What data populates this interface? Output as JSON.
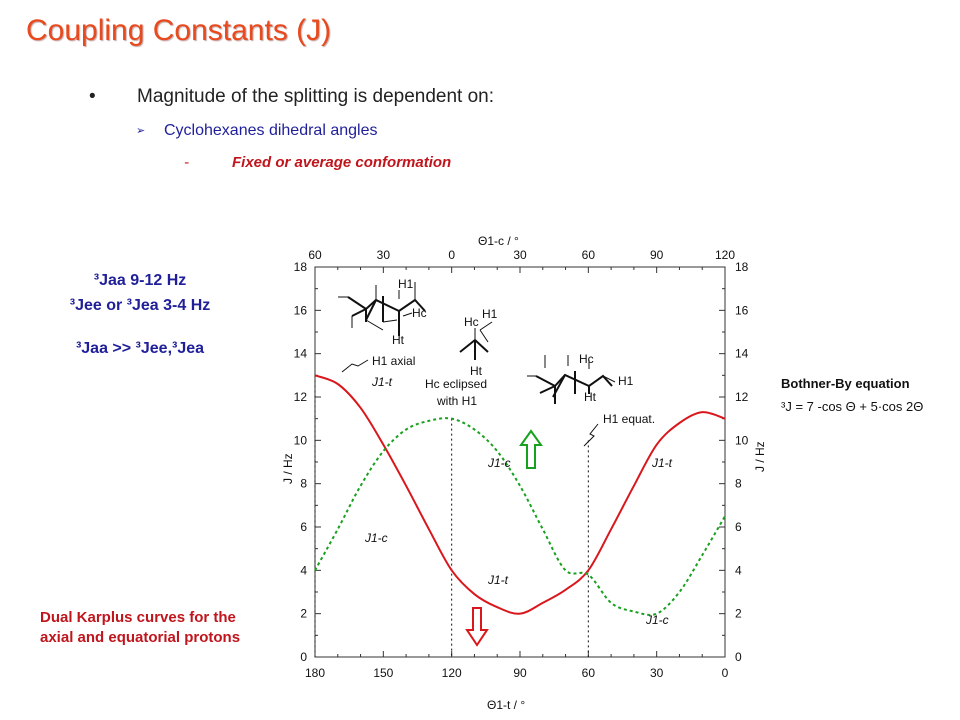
{
  "slide": {
    "title": "Coupling Constants (J)",
    "bullet_1": "Magnitude of the splitting is dependent on:",
    "bullet_1_marker": "•",
    "bullet_2": "Cyclohexanes dihedral angles",
    "bullet_2_marker": "➢",
    "bullet_3": "Fixed or average conformation",
    "bullet_3_marker": "-",
    "j_rule_1": "³Jaa 9-12 Hz",
    "j_rule_2": "³Jee or ³Jea 3-4 Hz",
    "j_rule_3": "³Jaa >> ³Jee,³Jea",
    "footnote": "Dual Karplus curves for the axial and equatorial protons"
  },
  "chart_data": {
    "type": "line",
    "x_bottom_label": "Θ1-t / °",
    "x_top_label": "Θ1-c / °",
    "ylabel_left": "J / Hz",
    "ylabel_right": "J / Hz",
    "x_bottom_ticks": [
      "180",
      "150",
      "120",
      "90",
      "60",
      "30",
      "0"
    ],
    "x_top_ticks": [
      "60",
      "30",
      "0",
      "30",
      "60",
      "90",
      "120"
    ],
    "y_ticks": [
      "0",
      "2",
      "4",
      "6",
      "8",
      "10",
      "12",
      "14",
      "16",
      "18"
    ],
    "xlim": [
      180,
      0
    ],
    "ylim": [
      0,
      18
    ],
    "equation_title": "Bothner-By equation",
    "equation": "³J = 7 -cos Θ + 5·cos 2Θ",
    "series": [
      {
        "name": "J1-t",
        "color": "#d9171c",
        "style": "solid",
        "x": [
          180,
          170,
          160,
          150,
          140,
          130,
          120,
          110,
          100,
          90,
          80,
          70,
          60,
          50,
          40,
          30,
          20,
          10,
          0
        ],
        "y": [
          13.0,
          12.6,
          11.5,
          9.8,
          7.9,
          5.9,
          4.0,
          2.9,
          2.3,
          2.0,
          2.5,
          3.1,
          4.0,
          5.9,
          7.9,
          9.8,
          10.8,
          11.3,
          11.0
        ]
      },
      {
        "name": "J1-c",
        "color": "#18a11e",
        "style": "dotted",
        "x": [
          180,
          170,
          160,
          150,
          140,
          130,
          120,
          110,
          100,
          90,
          80,
          70,
          60,
          50,
          40,
          30,
          20,
          10,
          0
        ],
        "y": [
          4.0,
          5.9,
          7.9,
          9.5,
          10.5,
          10.9,
          11.0,
          10.5,
          9.5,
          7.9,
          5.9,
          4.0,
          3.8,
          2.5,
          2.1,
          2.0,
          3.0,
          4.7,
          6.5
        ]
      }
    ],
    "annotations": [
      {
        "text": "H1 axial",
        "at_x": 180,
        "at_y": 13.0
      },
      {
        "text": "Hc eclipsed",
        "text2": "with H1",
        "at_x": 120,
        "at_y": 11.0
      },
      {
        "text": "H1 equat.",
        "at_x": 60,
        "at_y": 10.0
      }
    ],
    "curve_labels": [
      {
        "text": "J1-t",
        "color": "#d9171c"
      },
      {
        "text": "J1-c",
        "color": "#18a11e"
      },
      {
        "text": "J1-t",
        "color": "#d9171c"
      },
      {
        "text": "J1-c",
        "color": "#18a11e"
      },
      {
        "text": "J1-t",
        "color": "#d9171c"
      },
      {
        "text": "J1-c",
        "color": "#18a11e"
      }
    ],
    "structure_labels": {
      "h1": "H1",
      "hc": "Hc",
      "ht": "Ht"
    },
    "arrows": [
      {
        "direction": "up",
        "color": "#18a11e"
      },
      {
        "direction": "down",
        "color": "#d9171c"
      }
    ]
  }
}
